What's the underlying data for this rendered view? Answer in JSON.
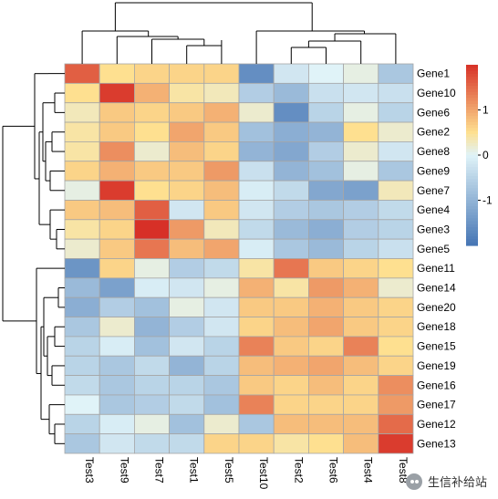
{
  "chart_data": {
    "type": "heatmap",
    "title": "",
    "xlabel": "",
    "ylabel": "",
    "columns": [
      "Test3",
      "Test9",
      "Test7",
      "Test1",
      "Test5",
      "Test10",
      "Test2",
      "Test6",
      "Test4",
      "Test8"
    ],
    "rows": [
      "Gene1",
      "Gene10",
      "Gene6",
      "Gene2",
      "Gene8",
      "Gene9",
      "Gene7",
      "Gene4",
      "Gene3",
      "Gene5",
      "Gene11",
      "Gene14",
      "Gene20",
      "Gene18",
      "Gene15",
      "Gene19",
      "Gene16",
      "Gene17",
      "Gene12",
      "Gene13"
    ],
    "values": [
      [
        1.6,
        0.5,
        0.6,
        0.6,
        0.6,
        -1.6,
        -0.2,
        0.0,
        0.1,
        -0.7
      ],
      [
        0.5,
        1.9,
        0.9,
        0.4,
        0.3,
        -0.6,
        -0.9,
        -0.3,
        -0.2,
        -0.3
      ],
      [
        0.3,
        0.7,
        0.6,
        0.7,
        0.9,
        0.2,
        -1.6,
        -0.5,
        0.1,
        -0.5
      ],
      [
        0.4,
        0.7,
        0.5,
        1.0,
        0.7,
        -0.8,
        -1.1,
        -1.0,
        0.5,
        0.2
      ],
      [
        0.4,
        1.2,
        0.2,
        0.8,
        0.6,
        -1.0,
        -1.2,
        -0.6,
        0.2,
        -0.2
      ],
      [
        0.6,
        0.9,
        0.7,
        0.7,
        1.1,
        -0.3,
        -1.0,
        -0.8,
        0.1,
        -0.7
      ],
      [
        0.1,
        1.9,
        0.5,
        0.6,
        0.8,
        -0.1,
        -0.4,
        -1.2,
        -1.3,
        0.3
      ],
      [
        0.7,
        0.8,
        1.6,
        -0.2,
        0.7,
        -0.2,
        -0.6,
        -0.7,
        -0.6,
        -0.4
      ],
      [
        0.4,
        0.6,
        2.0,
        1.1,
        0.3,
        -0.4,
        -0.9,
        -1.1,
        -0.6,
        -0.5
      ],
      [
        0.2,
        0.7,
        1.4,
        0.8,
        1.0,
        -0.1,
        -0.7,
        -0.9,
        -0.5,
        -0.3
      ],
      [
        -1.5,
        0.6,
        0.1,
        -0.6,
        -0.4,
        0.4,
        1.4,
        0.7,
        0.6,
        0.5
      ],
      [
        -0.9,
        -1.3,
        -0.1,
        -0.2,
        0.1,
        0.9,
        0.4,
        1.1,
        0.9,
        0.2
      ],
      [
        -1.1,
        -0.6,
        -0.8,
        0.1,
        -0.2,
        0.7,
        0.7,
        0.9,
        0.7,
        0.6
      ],
      [
        -0.7,
        0.2,
        -1.0,
        -0.6,
        -0.2,
        0.6,
        0.8,
        1.0,
        0.7,
        0.6
      ],
      [
        -0.5,
        -0.1,
        -0.8,
        -0.2,
        -0.5,
        1.3,
        0.7,
        0.6,
        1.3,
        0.5
      ],
      [
        -0.5,
        -0.7,
        -0.4,
        -1.0,
        -0.5,
        0.8,
        0.9,
        1.0,
        0.8,
        0.6
      ],
      [
        -0.4,
        -0.7,
        -0.5,
        -0.5,
        -0.7,
        0.7,
        0.6,
        0.8,
        0.6,
        1.2
      ],
      [
        0.0,
        -0.7,
        -0.6,
        -0.4,
        -0.8,
        1.3,
        0.6,
        0.6,
        0.6,
        1.1
      ],
      [
        -0.5,
        -0.1,
        0.1,
        -0.8,
        0.2,
        -0.7,
        0.8,
        0.8,
        0.8,
        1.5
      ],
      [
        -0.7,
        -0.2,
        -0.4,
        -0.4,
        0.6,
        0.6,
        0.4,
        0.5,
        0.8,
        1.9
      ]
    ],
    "colorbar": {
      "ticks": [
        1,
        0,
        -1
      ],
      "range": [
        -2,
        2
      ],
      "colors": [
        "#4575b4",
        "#e0f3f8",
        "#fee090",
        "#d73027"
      ],
      "stops": [
        -2,
        0,
        0.5,
        2
      ]
    },
    "cell_border_color": "#a6a6a6",
    "dendrogram": {
      "column_tree": true,
      "row_tree": true
    }
  },
  "watermark": {
    "text": "生信补给站",
    "icon": "wechat-icon"
  }
}
